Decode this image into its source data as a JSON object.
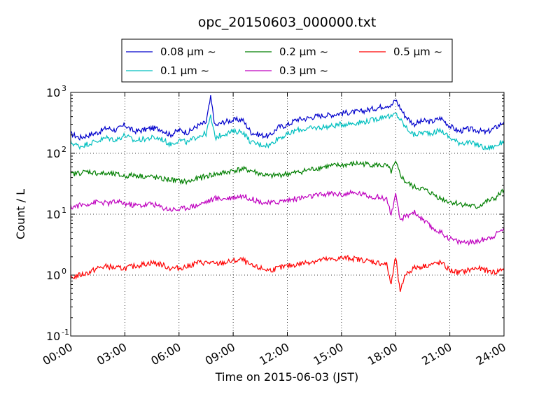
{
  "chart_data": {
    "type": "line",
    "title": "opc_20150603_000000.txt",
    "xlabel": "Time on 2015-06-03 (JST)",
    "ylabel": "Count / L",
    "yscale": "log",
    "ylim": [
      0.1,
      1000
    ],
    "xlim": [
      "00:00",
      "24:00"
    ],
    "x_ticks": [
      "00:00",
      "03:00",
      "06:00",
      "09:00",
      "12:00",
      "15:00",
      "18:00",
      "21:00",
      "24:00"
    ],
    "y_ticks": [
      {
        "base": "10",
        "exp": "-1",
        "value": 0.1
      },
      {
        "base": "10",
        "exp": "0",
        "value": 1
      },
      {
        "base": "10",
        "exp": "1",
        "value": 10
      },
      {
        "base": "10",
        "exp": "2",
        "value": 100
      },
      {
        "base": "10",
        "exp": "3",
        "value": 1000
      }
    ],
    "grid": true,
    "legend_position": "top-center",
    "x_hours": [
      0,
      0.5,
      1,
      1.5,
      2,
      2.5,
      3,
      3.5,
      4,
      4.5,
      5,
      5.5,
      6,
      6.5,
      7,
      7.5,
      7.75,
      8,
      8.5,
      9,
      9.5,
      10,
      10.5,
      11,
      11.5,
      12,
      12.5,
      13,
      13.5,
      14,
      14.5,
      15,
      15.5,
      16,
      16.5,
      17,
      17.5,
      17.75,
      18,
      18.25,
      18.5,
      19,
      19.5,
      20,
      20.5,
      21,
      21.5,
      22,
      22.5,
      23,
      23.5,
      24
    ],
    "series": [
      {
        "name": "0.08 μm ~",
        "color": "#0000cc",
        "values": [
          210,
          180,
          200,
          220,
          260,
          240,
          290,
          230,
          240,
          260,
          250,
          200,
          240,
          220,
          280,
          320,
          820,
          280,
          330,
          350,
          360,
          220,
          200,
          190,
          270,
          290,
          360,
          370,
          400,
          420,
          430,
          460,
          470,
          480,
          520,
          560,
          620,
          600,
          760,
          560,
          420,
          300,
          340,
          330,
          380,
          280,
          230,
          250,
          240,
          220,
          260,
          330
        ]
      },
      {
        "name": "0.1 μm ~",
        "color": "#00bfbf",
        "values": [
          150,
          130,
          145,
          160,
          180,
          165,
          200,
          160,
          170,
          180,
          175,
          140,
          165,
          150,
          190,
          210,
          400,
          180,
          210,
          225,
          230,
          150,
          140,
          135,
          180,
          200,
          240,
          250,
          260,
          270,
          280,
          300,
          310,
          320,
          340,
          370,
          420,
          390,
          450,
          360,
          280,
          200,
          220,
          215,
          240,
          180,
          150,
          150,
          140,
          120,
          130,
          160
        ]
      },
      {
        "name": "0.2 μm ~",
        "color": "#007f00",
        "values": [
          45,
          48,
          50,
          47,
          46,
          45,
          42,
          44,
          42,
          41,
          38,
          37,
          35,
          34,
          38,
          42,
          44,
          45,
          48,
          52,
          55,
          52,
          46,
          42,
          44,
          46,
          48,
          52,
          56,
          60,
          62,
          64,
          66,
          68,
          66,
          64,
          62,
          50,
          70,
          45,
          35,
          28,
          26,
          22,
          18,
          16,
          15,
          14,
          13,
          16,
          18,
          25
        ]
      },
      {
        "name": "0.3 μm ~",
        "color": "#bf00bf",
        "values": [
          13,
          14,
          15,
          16,
          15,
          16,
          15,
          14,
          14,
          15,
          13,
          12,
          12,
          13,
          14,
          16,
          17,
          18,
          18,
          19,
          20,
          18,
          16,
          15,
          16,
          17,
          18,
          19,
          20,
          21,
          22,
          21,
          22,
          22,
          20,
          19,
          18,
          10,
          20,
          8,
          9,
          11,
          8,
          6,
          5,
          4,
          3.5,
          3.5,
          3.5,
          4,
          4.5,
          6
        ]
      },
      {
        "name": "0.5 μm ~",
        "color": "#ff0000",
        "values": [
          0.9,
          1.0,
          1.1,
          1.3,
          1.4,
          1.3,
          1.3,
          1.4,
          1.5,
          1.6,
          1.5,
          1.3,
          1.3,
          1.4,
          1.6,
          1.6,
          1.6,
          1.5,
          1.6,
          1.7,
          1.8,
          1.4,
          1.3,
          1.2,
          1.3,
          1.4,
          1.5,
          1.6,
          1.7,
          1.8,
          1.8,
          1.9,
          1.9,
          1.8,
          1.7,
          1.6,
          1.5,
          0.7,
          2.0,
          0.5,
          1.0,
          1.3,
          1.4,
          1.5,
          1.6,
          1.2,
          1.1,
          1.2,
          1.3,
          1.2,
          1.1,
          1.3
        ]
      }
    ]
  }
}
